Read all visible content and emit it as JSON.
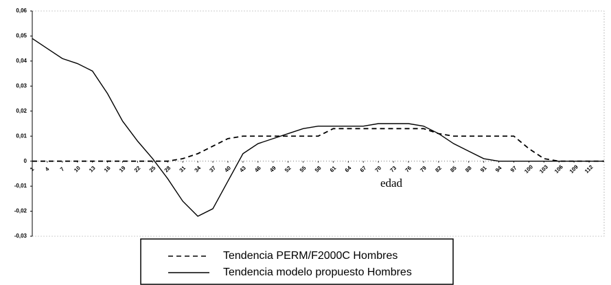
{
  "chart_data": {
    "type": "line",
    "x_label": "edad",
    "x": [
      1,
      4,
      7,
      10,
      13,
      16,
      19,
      22,
      25,
      28,
      31,
      34,
      37,
      40,
      43,
      46,
      49,
      52,
      55,
      58,
      61,
      64,
      67,
      70,
      73,
      76,
      79,
      82,
      85,
      88,
      91,
      94,
      97,
      100,
      103,
      106,
      109,
      112,
      115
    ],
    "series": [
      {
        "name": "Tendencia PERM/F2000C Hombres",
        "color": "#000000",
        "dash": true,
        "values": [
          0,
          0,
          0,
          0,
          0,
          0,
          0,
          0,
          0,
          0,
          0.001,
          0.003,
          0.006,
          0.009,
          0.01,
          0.01,
          0.01,
          0.01,
          0.01,
          0.01,
          0.013,
          0.013,
          0.013,
          0.013,
          0.013,
          0.013,
          0.013,
          0.011,
          0.01,
          0.01,
          0.01,
          0.01,
          0.01,
          0.005,
          0.001,
          0,
          0,
          0,
          0
        ]
      },
      {
        "name": "Tendencia modelo propuesto Hombres",
        "color": "#000000",
        "dash": false,
        "values": [
          0.049,
          0.045,
          0.041,
          0.039,
          0.036,
          0.027,
          0.016,
          0.008,
          0.001,
          -0.007,
          -0.016,
          -0.022,
          -0.019,
          -0.008,
          0.003,
          0.007,
          0.009,
          0.011,
          0.013,
          0.014,
          0.014,
          0.014,
          0.014,
          0.015,
          0.015,
          0.015,
          0.014,
          0.011,
          0.007,
          0.004,
          0.001,
          0,
          0,
          0,
          0,
          0,
          0,
          0,
          0
        ]
      }
    ],
    "xlim": [
      1,
      115
    ],
    "xticks": [
      1,
      4,
      7,
      10,
      13,
      16,
      19,
      22,
      25,
      28,
      31,
      34,
      37,
      40,
      43,
      46,
      49,
      52,
      55,
      58,
      61,
      64,
      67,
      70,
      73,
      76,
      79,
      82,
      85,
      88,
      91,
      94,
      97,
      100,
      103,
      106,
      109,
      112
    ],
    "ylim": [
      -0.03,
      0.06
    ],
    "yticks": [
      {
        "value": -0.03,
        "label": "-0,03"
      },
      {
        "value": -0.02,
        "label": "-0,02"
      },
      {
        "value": -0.01,
        "label": "-0,01"
      },
      0,
      {
        "value": 0.01,
        "label": "0,01"
      },
      {
        "value": 0.02,
        "label": "0,02"
      },
      {
        "value": 0.03,
        "label": "0,03"
      },
      {
        "value": 0.04,
        "label": "0,04"
      },
      {
        "value": 0.05,
        "label": "0,05"
      },
      {
        "value": 0.06,
        "label": "0,06"
      }
    ],
    "legend": "bottom"
  }
}
